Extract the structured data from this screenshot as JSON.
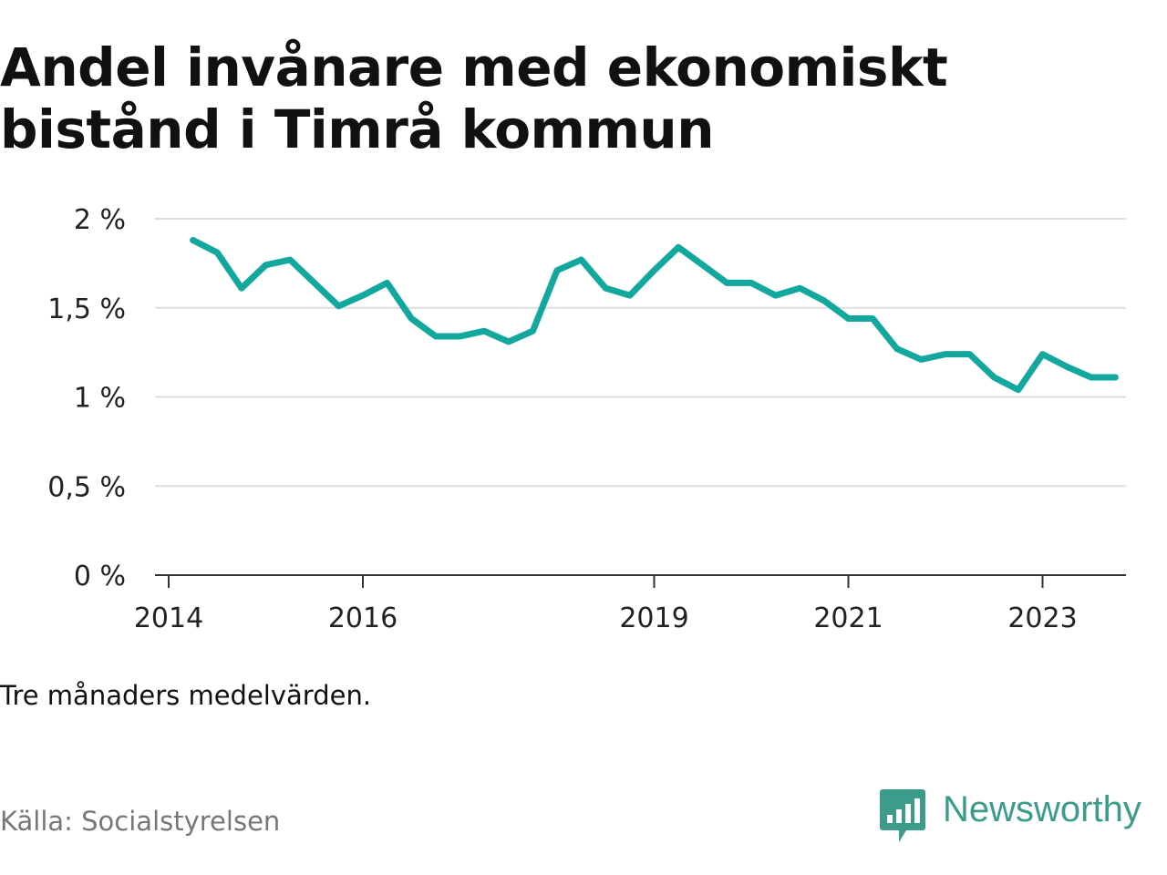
{
  "title": "Andel invånare med ekonomiskt bistånd i Timrå kommun",
  "note": "Tre månaders medelvärden.",
  "source": "Källa: Socialstyrelsen",
  "brand": {
    "name": "Newsworthy",
    "icon": "newsworthy-logo-icon",
    "color": "#3b9c8c"
  },
  "chart_data": {
    "type": "line",
    "title": "Andel invånare med ekonomiskt bistånd i Timrå kommun",
    "xlabel": "",
    "ylabel": "",
    "x_ticks": [
      "2014",
      "2016",
      "2019",
      "2021",
      "2023"
    ],
    "y_ticks": [
      "0 %",
      "0,5 %",
      "1 %",
      "1,5 %",
      "2 %"
    ],
    "ylim": [
      0,
      2
    ],
    "xlim": [
      2014.0,
      2024.0
    ],
    "grid": true,
    "legend": "none",
    "line_color": "#13a89e",
    "series": [
      {
        "x": [
          2014.25,
          2014.5,
          2014.75,
          2015.0,
          2015.25,
          2015.5,
          2015.75,
          2016.0,
          2016.25,
          2016.5,
          2016.75,
          2017.0,
          2017.25,
          2017.5,
          2017.75,
          2018.0,
          2018.25,
          2018.5,
          2018.75,
          2019.0,
          2019.25,
          2019.5,
          2019.75,
          2020.0,
          2020.25,
          2020.5,
          2020.75,
          2021.0,
          2021.25,
          2021.5,
          2021.75,
          2022.0,
          2022.25,
          2022.5,
          2022.75,
          2023.0,
          2023.25,
          2023.5,
          2023.75
        ],
        "values": [
          1.88,
          1.81,
          1.61,
          1.74,
          1.77,
          1.64,
          1.51,
          1.57,
          1.64,
          1.44,
          1.34,
          1.34,
          1.37,
          1.31,
          1.37,
          1.71,
          1.77,
          1.61,
          1.57,
          1.71,
          1.84,
          1.74,
          1.64,
          1.64,
          1.57,
          1.61,
          1.54,
          1.44,
          1.44,
          1.27,
          1.21,
          1.24,
          1.24,
          1.11,
          1.04,
          1.24,
          1.17,
          1.11,
          1.11
        ]
      }
    ]
  }
}
